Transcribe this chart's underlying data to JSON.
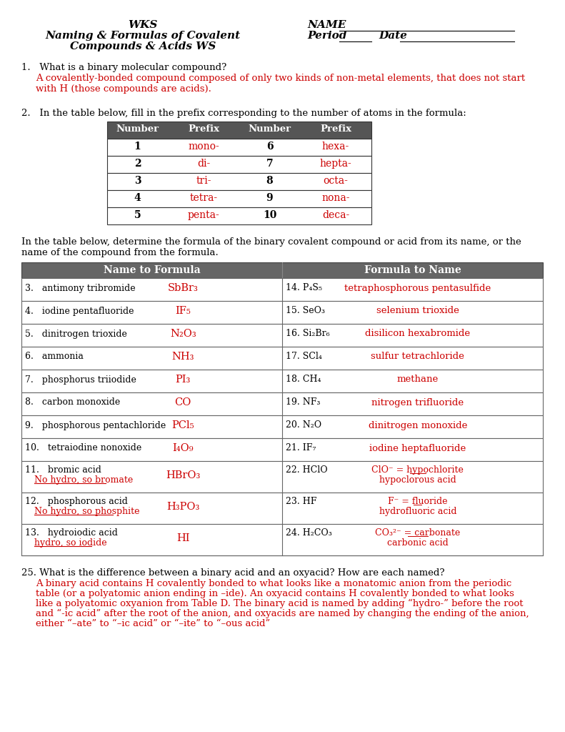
{
  "bg_color": "#ffffff",
  "red": "#cc0000",
  "black": "#000000",
  "header": {
    "left_line1": "WKS",
    "left_line2": "Naming & Formulas of Covalent",
    "left_line3": "Compounds & Acids WS",
    "right_name": "NAME",
    "right_period": "Period",
    "right_date": "Date"
  },
  "q1_question": "1.   What is a binary molecular compound?",
  "q1_ans1": "A covalently-bonded compound composed of only two kinds of non-metal elements, that does not start",
  "q1_ans2": "with H (those compounds are acids).",
  "q2_intro": "2.   In the table below, fill in the prefix corresponding to the number of atoms in the formula:",
  "prefix_headers": [
    "Number",
    "Prefix",
    "Number",
    "Prefix"
  ],
  "prefix_rows": [
    [
      "1",
      "mono-",
      "6",
      "hexa-"
    ],
    [
      "2",
      "di-",
      "7",
      "hepta-"
    ],
    [
      "3",
      "tri-",
      "8",
      "octa-"
    ],
    [
      "4",
      "tetra-",
      "9",
      "nona-"
    ],
    [
      "5",
      "penta-",
      "10",
      "deca-"
    ]
  ],
  "q3_intro1": "In the table below, determine the formula of the binary covalent compound or acid from its name, or the",
  "q3_intro2": "name of the compound from the formula.",
  "main_col1_header": "Name to Formula",
  "main_col2_header": "Formula to Name",
  "main_rows": [
    {
      "ln": "3.",
      "lname": "antimony tribromide",
      "lans": "SbBr₃",
      "rn": "14.",
      "rform": "P₄S₅",
      "rans": "tetraphosphorous pentasulfide"
    },
    {
      "ln": "4.",
      "lname": "iodine pentafluoride",
      "lans": "IF₅",
      "rn": "15.",
      "rform": "SeO₃",
      "rans": "selenium trioxide"
    },
    {
      "ln": "5.",
      "lname": "dinitrogen trioxide",
      "lans": "N₂O₃",
      "rn": "16.",
      "rform": "Si₂Br₆",
      "rans": "disilicon hexabromide"
    },
    {
      "ln": "6.",
      "lname": "ammonia",
      "lans": "NH₃",
      "rn": "17.",
      "rform": "SCl₄",
      "rans": "sulfur tetrachloride"
    },
    {
      "ln": "7.",
      "lname": "phosphorus triiodide",
      "lans": "PI₃",
      "rn": "18.",
      "rform": "CH₄",
      "rans": "methane"
    },
    {
      "ln": "8.",
      "lname": "carbon monoxide",
      "lans": "CO",
      "rn": "19.",
      "rform": "NF₃",
      "rans": "nitrogen trifluoride"
    },
    {
      "ln": "9.",
      "lname": "phosphorous pentachloride",
      "lans": "PCl₅",
      "rn": "20.",
      "rform": "N₂O",
      "rans": "dinitrogen monoxide"
    },
    {
      "ln": "10.",
      "lname": "tetraiodine nonoxide",
      "lans": "I₄O₉",
      "rn": "21.",
      "rform": "IF₇",
      "rans": "iodine heptafluoride"
    },
    {
      "ln": "11.",
      "lname": "bromic acid",
      "lname2": "No hydro, so bromate",
      "lans": "HBrO₃",
      "rn": "22.",
      "rform": "HClO",
      "rans1": "ClO⁻ = hypochlorite",
      "rans2": "hypoclorous acid"
    },
    {
      "ln": "12.",
      "lname": "phosphorous acid",
      "lname2": "No hydro, so phosphite",
      "lans": "H₃PO₃",
      "rn": "23.",
      "rform": "HF",
      "rans1": "F⁻ = fluoride",
      "rans2": "hydrofluoric acid"
    },
    {
      "ln": "13.",
      "lname": "hydroiodic acid",
      "lname2": "hydro, so iodide",
      "lans": "HI",
      "rn": "24.",
      "rform": "H₂CO₃",
      "rans1": "CO₃²⁻ = carbonate",
      "rans2": "carbonic acid"
    }
  ],
  "q25_q": "25. What is the difference between a binary acid and an oxyacid? How are each named?",
  "q25_a1": "A binary acid contains H covalently bonded to what looks like a monatomic anion from the periodic",
  "q25_a2": "table (or a polyatomic anion ending in –ide). An oxyacid contains H covalently bonded to what looks",
  "q25_a3": "like a polyatomic oxyanion from Table D. The binary acid is named by adding “hydro-” before the root",
  "q25_a4": "and “-ic acid” after the root of the anion, and oxyacids are named by changing the ending of the anion,",
  "q25_a5": "either “–ate” to “–ic acid” or “–ite” to “–ous acid”"
}
